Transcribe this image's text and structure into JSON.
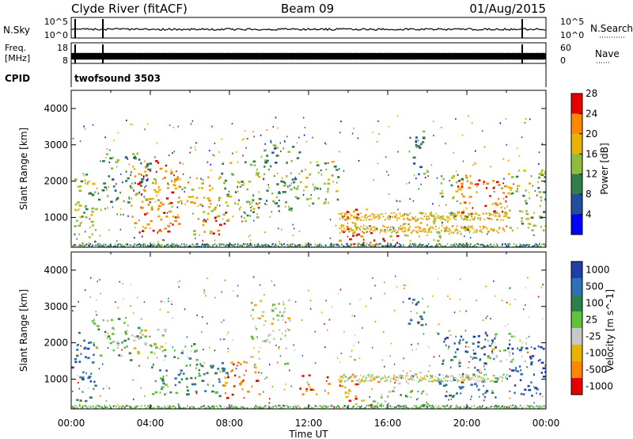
{
  "header": {
    "station": "Clyde River (fitACF)",
    "beam": "Beam 09",
    "date": "01/Aug/2015"
  },
  "strips": {
    "nsky_label": "N.Sky",
    "nsearch_label": "N.Search",
    "nsky_ticks": [
      "10^5",
      "10^0"
    ],
    "nsearch_ticks": [
      "10^5",
      "10^0"
    ],
    "freq_label_1": "Freq.",
    "freq_label_2": "[MHz]",
    "freq_ticks": [
      "18",
      "8"
    ],
    "nave_label": "Nave",
    "nave_ticks": [
      "60",
      "0"
    ],
    "cpid_label": "CPID",
    "cpid_value": "twofsound 3503"
  },
  "chart_data": [
    {
      "type": "heatmap",
      "name": "power-panel",
      "ylabel": "Slant Range [km]",
      "xlabel": "",
      "xlim": [
        "00:00",
        "24:00"
      ],
      "ylim": [
        180,
        4500
      ],
      "yticks": [
        1000,
        2000,
        3000,
        4000
      ],
      "yticklabels": [
        "1000",
        "2000",
        "3000",
        "4000"
      ],
      "colorbar": {
        "label": "Power [dB]",
        "ticks": [
          "4",
          "8",
          "12",
          "16",
          "20",
          "24",
          "28"
        ],
        "colors": [
          "#0000ff",
          "#1f4f9e",
          "#2e7f4a",
          "#8fbc3a",
          "#e8b400",
          "#ff8800",
          "#e60000"
        ]
      },
      "regions": [
        {
          "t": [
            0.0,
            1.5
          ],
          "r": [
            300,
            2300
          ],
          "level": 3
        },
        {
          "t": [
            1.5,
            4.0
          ],
          "r": [
            1400,
            2800
          ],
          "level": 2
        },
        {
          "t": [
            3.0,
            5.5
          ],
          "r": [
            600,
            2600
          ],
          "level": 5
        },
        {
          "t": [
            4.0,
            6.0
          ],
          "r": [
            1200,
            2200
          ],
          "level": 4
        },
        {
          "t": [
            6.0,
            7.5
          ],
          "r": [
            500,
            2200
          ],
          "level": 4
        },
        {
          "t": [
            7.0,
            7.8
          ],
          "r": [
            500,
            1200
          ],
          "level": 6
        },
        {
          "t": [
            7.5,
            9.5
          ],
          "r": [
            900,
            2600
          ],
          "level": 3
        },
        {
          "t": [
            9.5,
            11.5
          ],
          "r": [
            1200,
            3200
          ],
          "level": 2
        },
        {
          "t": [
            11.5,
            13.5
          ],
          "r": [
            1400,
            2600
          ],
          "level": 3
        },
        {
          "t": [
            13.5,
            15.0
          ],
          "r": [
            300,
            1300
          ],
          "level": 5
        },
        {
          "t": [
            14.0,
            16.5
          ],
          "r": [
            250,
            600
          ],
          "level": 6
        },
        {
          "t": [
            16.5,
            18.5
          ],
          "r": [
            300,
            1200
          ],
          "level": 4
        },
        {
          "t": [
            17.0,
            18.0
          ],
          "r": [
            2200,
            3400
          ],
          "level": 2
        },
        {
          "t": [
            18.5,
            20.0
          ],
          "r": [
            500,
            2200
          ],
          "level": 3
        },
        {
          "t": [
            19.5,
            22.0
          ],
          "r": [
            1000,
            2200
          ],
          "level": 5
        },
        {
          "t": [
            22.0,
            24.0
          ],
          "r": [
            500,
            2400
          ],
          "level": 3
        }
      ],
      "bands": [
        {
          "t": [
            13.5,
            22.0
          ],
          "r": [
            950,
            1150
          ],
          "level": 4
        },
        {
          "t": [
            13.5,
            22.0
          ],
          "r": [
            600,
            800
          ],
          "level": 4
        },
        {
          "t": [
            0.0,
            24.0
          ],
          "r": [
            180,
            300
          ],
          "level": 2
        }
      ]
    },
    {
      "type": "heatmap",
      "name": "velocity-panel",
      "ylabel": "Slant Range [km]",
      "xlabel": "Time UT",
      "xlim": [
        "00:00",
        "24:00"
      ],
      "ylim": [
        180,
        4500
      ],
      "xticklabels": [
        "00:00",
        "04:00",
        "08:00",
        "12:00",
        "16:00",
        "20:00",
        "00:00"
      ],
      "yticks": [
        1000,
        2000,
        3000,
        4000
      ],
      "yticklabels": [
        "1000",
        "2000",
        "3000",
        "4000"
      ],
      "colorbar": {
        "label": "Velocity [m s^-1]",
        "ticks": [
          "1000",
          "500",
          "100",
          "25",
          "-25",
          "-100",
          "-500",
          "-1000"
        ],
        "colors": [
          "#1f3fa8",
          "#2d6fb8",
          "#2e7f4a",
          "#5fc43a",
          "#c8c8c8",
          "#e8b400",
          "#ff8800",
          "#e60000"
        ]
      },
      "regions": [
        {
          "t": [
            0.0,
            1.2
          ],
          "r": [
            400,
            2300
          ],
          "level": 1
        },
        {
          "t": [
            1.0,
            3.5
          ],
          "r": [
            1500,
            2700
          ],
          "level": 3
        },
        {
          "t": [
            3.0,
            5.0
          ],
          "r": [
            1600,
            2400
          ],
          "level": 4
        },
        {
          "t": [
            4.0,
            6.5
          ],
          "r": [
            600,
            2000
          ],
          "level": 2
        },
        {
          "t": [
            6.5,
            8.0
          ],
          "r": [
            500,
            1500
          ],
          "level": 2
        },
        {
          "t": [
            7.5,
            9.5
          ],
          "r": [
            500,
            1500
          ],
          "level": 6
        },
        {
          "t": [
            9.0,
            11.0
          ],
          "r": [
            1400,
            3200
          ],
          "level": 4
        },
        {
          "t": [
            11.5,
            13.0
          ],
          "r": [
            600,
            1200
          ],
          "level": 6
        },
        {
          "t": [
            13.5,
            15.5
          ],
          "r": [
            300,
            1200
          ],
          "level": 6
        },
        {
          "t": [
            15.0,
            18.0
          ],
          "r": [
            250,
            700
          ],
          "level": 3
        },
        {
          "t": [
            16.0,
            18.5
          ],
          "r": [
            900,
            1300
          ],
          "level": 4
        },
        {
          "t": [
            17.0,
            18.0
          ],
          "r": [
            2500,
            3300
          ],
          "level": 1
        },
        {
          "t": [
            18.5,
            21.5
          ],
          "r": [
            500,
            2300
          ],
          "level": 1
        },
        {
          "t": [
            21.0,
            23.0
          ],
          "r": [
            1500,
            2300
          ],
          "level": 4
        },
        {
          "t": [
            22.0,
            24.0
          ],
          "r": [
            500,
            2000
          ],
          "level": 0
        }
      ],
      "bands": [
        {
          "t": [
            0.0,
            24.0
          ],
          "r": [
            180,
            300
          ],
          "level": 3
        },
        {
          "t": [
            13.5,
            22.0
          ],
          "r": [
            950,
            1150
          ],
          "level": 4
        }
      ]
    }
  ]
}
